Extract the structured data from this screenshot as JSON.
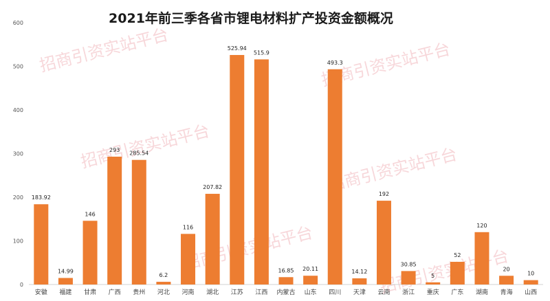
{
  "chart_data": {
    "type": "bar",
    "title": "2021年前三季各省市锂电材料扩产投资金额概况",
    "categories": [
      "安徽",
      "福建",
      "甘肃",
      "广西",
      "贵州",
      "河北",
      "河南",
      "湖北",
      "江苏",
      "江西",
      "内蒙古",
      "山东",
      "四川",
      "天津",
      "云南",
      "浙江",
      "重庆",
      "广东",
      "湖南",
      "青海",
      "山西"
    ],
    "values": [
      183.92,
      14.99,
      146,
      293,
      285.54,
      6.2,
      116,
      207.82,
      525.94,
      515.9,
      16.85,
      20.11,
      493.3,
      14.12,
      192,
      30.85,
      5,
      52,
      120,
      20,
      10
    ],
    "value_labels": [
      "183.92",
      "14.99",
      "146",
      "293",
      "285.54",
      "6.2",
      "116",
      "207.82",
      "525.94",
      "515.9",
      "16.85",
      "20.11",
      "493.3",
      "14.12",
      "192",
      "30.85",
      "5",
      "52",
      "120",
      "20",
      "10"
    ],
    "ylim": [
      0,
      600
    ],
    "yticks": [
      "0",
      "100",
      "200",
      "300",
      "400",
      "500",
      "600"
    ],
    "xlabel": "",
    "ylabel": "",
    "grid": false,
    "bar_color": "#ED7D31"
  },
  "watermarks": [
    "招商引资实站平台",
    "招商引资实站平台",
    "招商引资实站平台",
    "招商引资实站平台",
    "招商引资实站平台",
    "招商引资实站平台"
  ]
}
